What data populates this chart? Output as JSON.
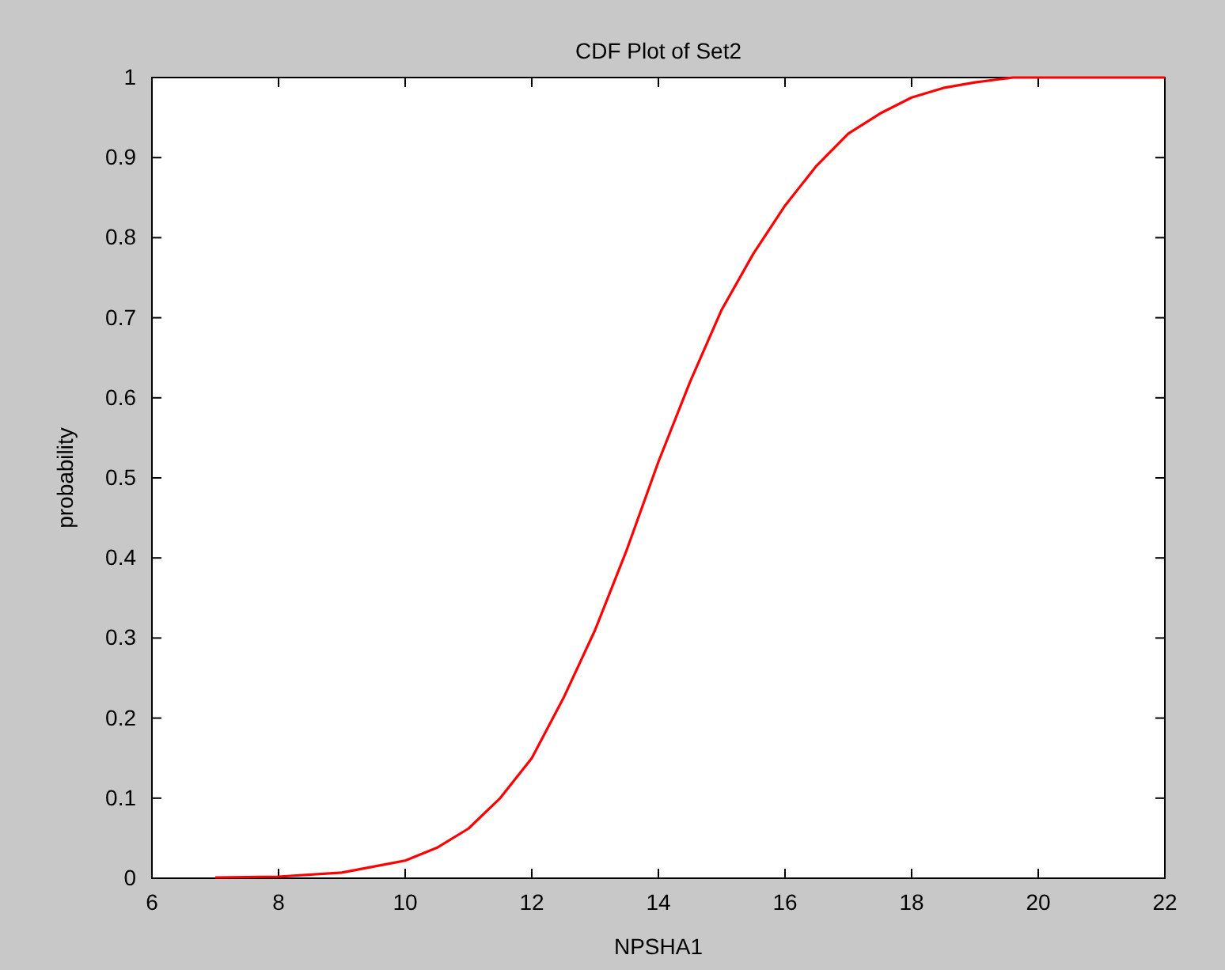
{
  "chart_data": {
    "type": "line",
    "title": "CDF Plot of Set2",
    "xlabel": "NPSHA1",
    "ylabel": "probability",
    "x": [
      7,
      8,
      9,
      10,
      10.5,
      11,
      11.5,
      12,
      12.5,
      13,
      13.5,
      14,
      14.5,
      15,
      15.5,
      16,
      16.5,
      17,
      17.5,
      18,
      18.5,
      19,
      19.6,
      20,
      22
    ],
    "series": [
      {
        "color": "#ff0000",
        "values": [
          0.001,
          0.002,
          0.007,
          0.022,
          0.038,
          0.062,
          0.1,
          0.15,
          0.225,
          0.31,
          0.41,
          0.52,
          0.62,
          0.71,
          0.78,
          0.84,
          0.89,
          0.93,
          0.955,
          0.975,
          0.987,
          0.994,
          1,
          1,
          1
        ]
      }
    ],
    "xlim": [
      6,
      22
    ],
    "xticks": [
      6,
      8,
      10,
      12,
      14,
      16,
      18,
      20,
      22
    ],
    "ylim": [
      0,
      1
    ],
    "yticks": [
      0,
      0.1,
      0.2,
      0.3,
      0.4,
      0.5,
      0.6,
      0.7,
      0.8,
      0.9,
      1
    ],
    "grid": false,
    "legend": false,
    "marker": "none",
    "line_style": "solid"
  }
}
